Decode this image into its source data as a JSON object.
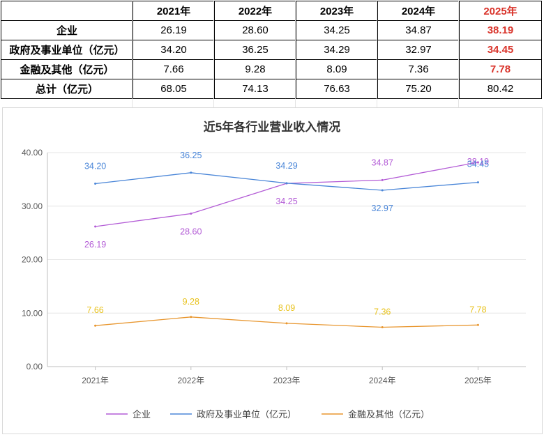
{
  "table": {
    "header": [
      "",
      "2021年",
      "2022年",
      "2023年",
      "2024年",
      "2025年"
    ],
    "rows": [
      {
        "label": "企业",
        "values": [
          "26.19",
          "28.60",
          "34.25",
          "34.87",
          "38.19"
        ]
      },
      {
        "label": "政府及事业单位（亿元）",
        "values": [
          "34.20",
          "36.25",
          "34.29",
          "32.97",
          "34.45"
        ]
      },
      {
        "label": "金融及其他（亿元）",
        "values": [
          "7.66",
          "9.28",
          "8.09",
          "7.36",
          "7.78"
        ]
      },
      {
        "label": "总计（亿元）",
        "values": [
          "68.05",
          "74.13",
          "76.63",
          "75.20",
          "80.42"
        ]
      }
    ]
  },
  "colors": {
    "highlight": "#d9342b",
    "enterprise": "#b35cd6",
    "government": "#4a86d8",
    "finance": "#e8962e",
    "finance_label": "#e8c21c"
  },
  "chart_data": {
    "type": "line",
    "title": "近5年各行业营业收入情况",
    "categories": [
      "2021年",
      "2022年",
      "2023年",
      "2024年",
      "2025年"
    ],
    "ylim": [
      0,
      40
    ],
    "yticks": [
      "0.00",
      "10.00",
      "20.00",
      "30.00",
      "40.00"
    ],
    "grid": true,
    "legend": "bottom",
    "series": [
      {
        "name": "企业",
        "values": [
          26.19,
          28.6,
          34.25,
          34.87,
          38.19
        ],
        "labels": [
          "26.19",
          "28.60",
          "34.25",
          "34.87",
          "38.19"
        ]
      },
      {
        "name": "政府及事业单位（亿元）",
        "values": [
          34.2,
          36.25,
          34.29,
          32.97,
          34.45
        ],
        "labels": [
          "34.20",
          "36.25",
          "34.29",
          "32.97",
          "34.45"
        ]
      },
      {
        "name": "金融及其他（亿元）",
        "values": [
          7.66,
          9.28,
          8.09,
          7.36,
          7.78
        ],
        "labels": [
          "7.66",
          "9.28",
          "8.09",
          "7.36",
          "7.78"
        ]
      }
    ]
  }
}
